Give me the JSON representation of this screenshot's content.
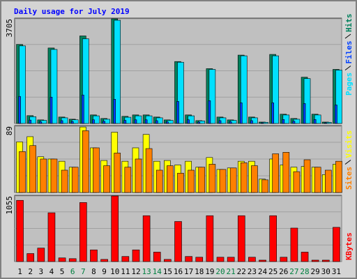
{
  "chart_data": [
    {
      "type": "bar",
      "title": "Daily usage for July 2019",
      "ylim": [
        0,
        3705
      ],
      "yticks": [
        3705
      ],
      "series": [
        {
          "name": "Pages",
          "color": "#00e0ff",
          "values": [
            2747,
            240,
            110,
            2621,
            200,
            130,
            3000,
            270,
            150,
            3655,
            220,
            270,
            270,
            200,
            110,
            2168,
            270,
            90,
            1915,
            200,
            110,
            2395,
            200,
            40,
            2395,
            300,
            150,
            1588,
            300,
            40,
            1890
          ]
        },
        {
          "name": "Files",
          "color": "#0040ff",
          "values": [
            958,
            120,
            60,
            933,
            100,
            70,
            1008,
            130,
            80,
            857,
            110,
            130,
            130,
            100,
            60,
            781,
            130,
            50,
            806,
            100,
            60,
            731,
            100,
            20,
            731,
            140,
            80,
            706,
            140,
            20,
            655
          ]
        },
        {
          "name": "Hits",
          "color": "#00805c",
          "values": [
            2798,
            277,
            126,
            2672,
            227,
            151,
            3100,
            302,
            176,
            3705,
            252,
            302,
            302,
            227,
            126,
            2193,
            302,
            101,
            1941,
            227,
            126,
            2420,
            227,
            50,
            2445,
            328,
            176,
            1638,
            328,
            50,
            1915
          ]
        }
      ]
    },
    {
      "type": "bar",
      "ylim": [
        0,
        89
      ],
      "yticks": [
        89
      ],
      "series": [
        {
          "name": "Sites",
          "color": "#ff8000",
          "values": [
            55,
            63,
            45,
            45,
            30,
            34,
            83,
            60,
            36,
            53,
            34,
            45,
            59,
            30,
            36,
            26,
            30,
            34,
            38,
            31,
            33,
            40,
            36,
            17,
            52,
            54,
            28,
            44,
            34,
            30,
            42
          ]
        },
        {
          "name": "Visits",
          "color": "#ffff00",
          "values": [
            68,
            75,
            48,
            45,
            42,
            34,
            88,
            60,
            43,
            81,
            42,
            60,
            78,
            42,
            43,
            37,
            42,
            34,
            47,
            31,
            33,
            42,
            42,
            18,
            45,
            37,
            34,
            35,
            34,
            24,
            38
          ]
        }
      ]
    },
    {
      "type": "bar",
      "ylim": [
        0,
        1055
      ],
      "yticks": [
        1055
      ],
      "categories": [
        "1",
        "2",
        "3",
        "4",
        "5",
        "6",
        "7",
        "8",
        "9",
        "10",
        "11",
        "12",
        "13",
        "14",
        "15",
        "16",
        "17",
        "18",
        "19",
        "20",
        "21",
        "22",
        "23",
        "24",
        "25",
        "26",
        "27",
        "28",
        "29",
        "30",
        "31"
      ],
      "category_colors": [
        "#000000",
        "#000000",
        "#000000",
        "#000000",
        "#000000",
        "#008040",
        "#008040",
        "#000000",
        "#000000",
        "#000000",
        "#000000",
        "#000000",
        "#008040",
        "#008040",
        "#000000",
        "#000000",
        "#000000",
        "#000000",
        "#000000",
        "#008040",
        "#008040",
        "#000000",
        "#000000",
        "#000000",
        "#000000",
        "#000000",
        "#008040",
        "#008040",
        "#000000",
        "#000000",
        "#000000"
      ],
      "series": [
        {
          "name": "KBytes",
          "color": "#ff0000",
          "values": [
            985,
            129,
            217,
            785,
            59,
            47,
            950,
            188,
            35,
            1055,
            82,
            188,
            738,
            152,
            35,
            645,
            82,
            70,
            738,
            70,
            70,
            738,
            70,
            23,
            738,
            70,
            539,
            152,
            23,
            23,
            551
          ]
        }
      ]
    }
  ]
}
